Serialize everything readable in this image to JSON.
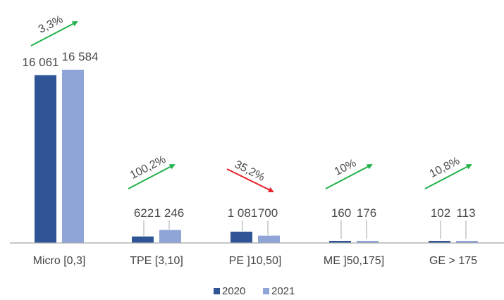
{
  "chart_data": {
    "type": "bar",
    "categories": [
      "Micro  [0,3]",
      "TPE [3,10]",
      "PE ]10,50]",
      "ME ]50,175]",
      "GE > 175"
    ],
    "series": [
      {
        "name": "2020",
        "values": [
          16061,
          622,
          1081,
          160,
          102
        ],
        "labels": [
          "16 061",
          "622",
          "1 081",
          "160",
          "102"
        ],
        "color": "#2f5597"
      },
      {
        "name": "2021",
        "values": [
          16584,
          1246,
          700,
          176,
          113
        ],
        "labels": [
          "16 584",
          "1 246",
          "700",
          "176",
          "113"
        ],
        "color": "#8fa5d8"
      }
    ],
    "changes": [
      {
        "label": "3,3%",
        "direction": "up"
      },
      {
        "label": "100,2%",
        "direction": "up"
      },
      {
        "label": "35,2%",
        "direction": "down"
      },
      {
        "label": "10%",
        "direction": "up"
      },
      {
        "label": "10,8%",
        "direction": "up"
      }
    ],
    "up_color": "#22b14c",
    "down_color": "#e8202a",
    "axis_color": "#a6a6a6",
    "ylim": [
      0,
      16584
    ],
    "legend_position": "bottom",
    "grid": false
  }
}
